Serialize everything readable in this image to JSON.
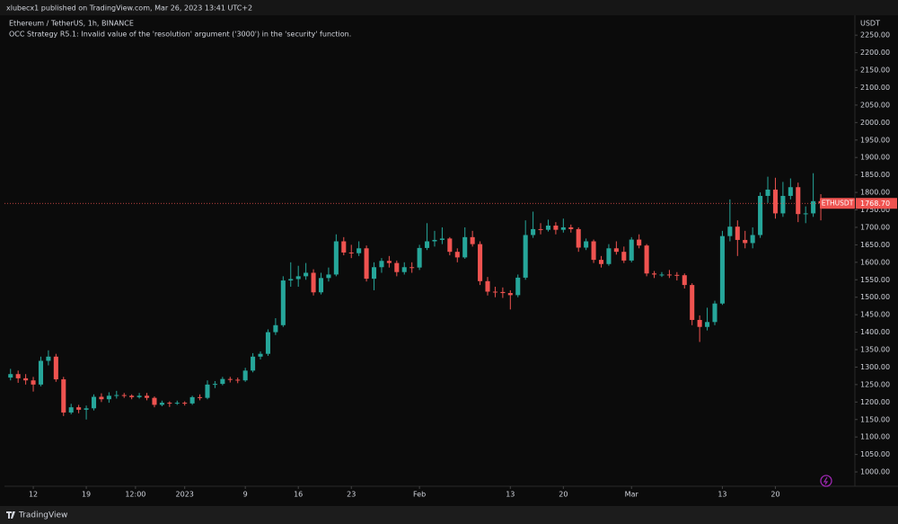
{
  "header": {
    "publisher": "xlubecx1 published on TradingView.com, Mar 26, 2023 13:41 UTC+2",
    "note": "OCC Strategy R5.1: Invalid value of the 'resolution' argument ('3000') in the 'security' function."
  },
  "footer": {
    "brand": "TradingView"
  },
  "chart_data": {
    "type": "candlestick",
    "title": "Ethereum / TetherUS, 1h, BINANCE",
    "y_axis_unit": "USDT",
    "x": [
      9,
      10,
      11,
      12,
      13,
      14,
      15,
      16,
      17,
      18,
      19,
      20,
      21,
      22,
      23,
      24,
      25,
      26,
      27,
      28,
      29,
      30,
      31,
      32,
      33,
      34,
      35,
      36,
      37,
      38,
      39,
      40,
      41,
      42,
      43,
      44,
      45,
      46,
      47,
      48,
      49,
      50,
      51,
      52,
      53,
      54,
      55,
      56,
      57,
      58,
      59,
      60,
      61,
      62,
      63,
      64,
      65,
      66,
      67,
      68,
      69,
      70,
      71,
      72,
      73,
      74,
      75,
      76,
      77,
      78,
      79,
      80,
      81,
      82,
      83,
      84,
      85,
      86,
      87,
      88,
      89,
      90,
      91,
      92,
      93,
      94,
      95,
      96,
      97,
      98,
      99,
      100,
      101,
      102,
      103,
      104,
      105,
      106,
      107,
      108,
      109,
      110,
      111,
      112,
      113,
      114,
      115,
      116
    ],
    "open": [
      1270,
      1280,
      1268,
      1262,
      1250,
      1318,
      1330,
      1265,
      1170,
      1185,
      1178,
      1182,
      1215,
      1208,
      1218,
      1220,
      1218,
      1214,
      1218,
      1212,
      1192,
      1198,
      1196,
      1198,
      1196,
      1214,
      1212,
      1250,
      1252,
      1266,
      1264,
      1262,
      1290,
      1330,
      1338,
      1400,
      1420,
      1548,
      1552,
      1560,
      1570,
      1514,
      1555,
      1565,
      1660,
      1628,
      1626,
      1640,
      1553,
      1586,
      1604,
      1598,
      1572,
      1586,
      1585,
      1641,
      1660,
      1664,
      1668,
      1630,
      1614,
      1672,
      1652,
      1546,
      1516,
      1515,
      1512,
      1506,
      1556,
      1678,
      1695,
      1693,
      1705,
      1693,
      1700,
      1695,
      1642,
      1660,
      1607,
      1595,
      1640,
      1630,
      1605,
      1665,
      1648,
      1568,
      1565,
      1565,
      1564,
      1563,
      1535,
      1435,
      1415,
      1429,
      1482,
      1675,
      1702,
      1664,
      1655,
      1678,
      1790,
      1808,
      1740,
      1790,
      1815,
      1738,
      1740,
      1775
    ],
    "high": [
      1295,
      1290,
      1280,
      1272,
      1330,
      1348,
      1338,
      1272,
      1195,
      1192,
      1190,
      1222,
      1225,
      1228,
      1232,
      1226,
      1222,
      1226,
      1226,
      1216,
      1204,
      1202,
      1204,
      1202,
      1218,
      1222,
      1262,
      1260,
      1272,
      1272,
      1270,
      1298,
      1340,
      1345,
      1408,
      1440,
      1560,
      1600,
      1590,
      1598,
      1580,
      1570,
      1585,
      1680,
      1672,
      1650,
      1660,
      1648,
      1600,
      1612,
      1618,
      1605,
      1600,
      1600,
      1650,
      1712,
      1690,
      1700,
      1672,
      1640,
      1700,
      1690,
      1660,
      1558,
      1530,
      1528,
      1520,
      1565,
      1720,
      1745,
      1712,
      1722,
      1715,
      1725,
      1708,
      1700,
      1668,
      1665,
      1618,
      1652,
      1660,
      1645,
      1672,
      1680,
      1652,
      1575,
      1572,
      1578,
      1572,
      1568,
      1540,
      1448,
      1470,
      1490,
      1690,
      1780,
      1720,
      1690,
      1700,
      1800,
      1845,
      1842,
      1830,
      1840,
      1828,
      1760,
      1855,
      1795
    ],
    "low": [
      1262,
      1255,
      1250,
      1230,
      1245,
      1305,
      1258,
      1160,
      1165,
      1168,
      1150,
      1176,
      1200,
      1198,
      1210,
      1212,
      1208,
      1210,
      1205,
      1185,
      1188,
      1186,
      1192,
      1190,
      1192,
      1205,
      1208,
      1240,
      1248,
      1256,
      1254,
      1258,
      1285,
      1322,
      1332,
      1392,
      1415,
      1530,
      1530,
      1550,
      1505,
      1508,
      1545,
      1560,
      1620,
      1612,
      1618,
      1545,
      1520,
      1570,
      1585,
      1560,
      1565,
      1570,
      1578,
      1635,
      1645,
      1652,
      1620,
      1600,
      1610,
      1645,
      1535,
      1505,
      1500,
      1498,
      1465,
      1500,
      1550,
      1670,
      1680,
      1688,
      1680,
      1685,
      1685,
      1630,
      1635,
      1598,
      1585,
      1590,
      1622,
      1598,
      1600,
      1640,
      1560,
      1555,
      1558,
      1555,
      1548,
      1525,
      1420,
      1372,
      1405,
      1420,
      1478,
      1660,
      1618,
      1640,
      1640,
      1670,
      1770,
      1725,
      1730,
      1780,
      1715,
      1712,
      1730,
      1720
    ],
    "close": [
      1280,
      1268,
      1262,
      1250,
      1318,
      1330,
      1265,
      1170,
      1185,
      1178,
      1182,
      1215,
      1208,
      1218,
      1220,
      1218,
      1214,
      1218,
      1212,
      1192,
      1198,
      1196,
      1198,
      1196,
      1214,
      1212,
      1250,
      1252,
      1266,
      1264,
      1262,
      1290,
      1330,
      1338,
      1400,
      1420,
      1548,
      1552,
      1560,
      1570,
      1514,
      1555,
      1565,
      1660,
      1628,
      1626,
      1640,
      1553,
      1586,
      1604,
      1598,
      1572,
      1586,
      1585,
      1641,
      1660,
      1664,
      1668,
      1630,
      1614,
      1672,
      1652,
      1546,
      1516,
      1515,
      1512,
      1506,
      1556,
      1678,
      1695,
      1693,
      1705,
      1693,
      1700,
      1695,
      1642,
      1660,
      1607,
      1595,
      1640,
      1630,
      1605,
      1665,
      1648,
      1568,
      1565,
      1565,
      1564,
      1563,
      1535,
      1435,
      1415,
      1429,
      1482,
      1675,
      1702,
      1664,
      1655,
      1678,
      1790,
      1808,
      1740,
      1790,
      1815,
      1738,
      1740,
      1775,
      1768.7
    ],
    "up_color": "#26a69a",
    "down_color": "#ef5350",
    "xlim": [
      8.2,
      120.5
    ],
    "xticks": [
      12,
      19,
      {
        "value": 25.5,
        "label": "12:00"
      },
      {
        "value": 32,
        "label": "2023"
      },
      {
        "value": 40,
        "label": "9"
      },
      {
        "value": 47,
        "label": "16"
      },
      {
        "value": 54,
        "label": "23"
      },
      {
        "value": 63,
        "label": "Feb"
      },
      {
        "value": 75,
        "label": "13"
      },
      {
        "value": 82,
        "label": "20"
      },
      {
        "value": 91,
        "label": "Mar"
      },
      {
        "value": 103,
        "label": "13"
      },
      {
        "value": 110,
        "label": "20"
      }
    ],
    "ylim": [
      959,
      2307
    ],
    "yticks": [
      {
        "value": 1000,
        "label": "1000.00"
      },
      {
        "value": 1050,
        "label": "1050.00"
      },
      {
        "value": 1100,
        "label": "1100.00"
      },
      {
        "value": 1150,
        "label": "1150.00"
      },
      {
        "value": 1200,
        "label": "1200.00"
      },
      {
        "value": 1250,
        "label": "1250.00"
      },
      {
        "value": 1300,
        "label": "1300.00"
      },
      {
        "value": 1350,
        "label": "1350.00"
      },
      {
        "value": 1400,
        "label": "1400.00"
      },
      {
        "value": 1450,
        "label": "1450.00"
      },
      {
        "value": 1500,
        "label": "1500.00"
      },
      {
        "value": 1550,
        "label": "1550.00"
      },
      {
        "value": 1600,
        "label": "1600.00"
      },
      {
        "value": 1650,
        "label": "1650.00"
      },
      {
        "value": 1700,
        "label": "1700.00"
      },
      {
        "value": 1750,
        "label": "1750.00"
      },
      {
        "value": 1800,
        "label": "1800.00"
      },
      {
        "value": 1850,
        "label": "1850.00"
      },
      {
        "value": 1900,
        "label": "1900.00"
      },
      {
        "value": 1950,
        "label": "1950.00"
      },
      {
        "value": 2000,
        "label": "2000.00"
      },
      {
        "value": 2050,
        "label": "2050.00"
      },
      {
        "value": 2100,
        "label": "2100.00"
      },
      {
        "value": 2150,
        "label": "2150.00"
      },
      {
        "value": 2200,
        "label": "2200.00"
      },
      {
        "value": 2250,
        "label": "2250.00"
      }
    ],
    "grid": false,
    "last_price": {
      "value": 1768.7,
      "label": "1768.70"
    },
    "last_price_tag": "ETHUSDT",
    "last_price_color": "#ef5350"
  }
}
